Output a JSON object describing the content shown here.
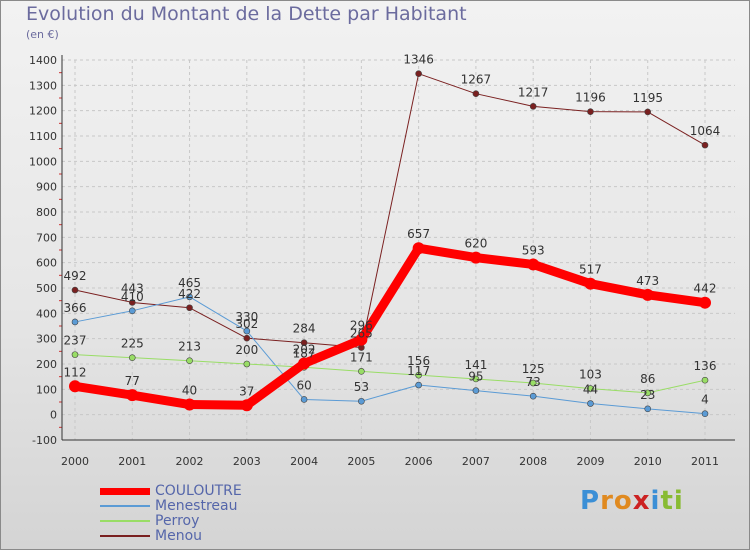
{
  "chart_data": {
    "type": "line",
    "title": "Evolution du Montant de la Dette par Habitant",
    "subtitle": "(en €)",
    "xlabel": "",
    "ylabel": "",
    "x": [
      "2000",
      "2001",
      "2002",
      "2003",
      "2004",
      "2005",
      "2006",
      "2007",
      "2008",
      "2009",
      "2010",
      "2011"
    ],
    "ylim": [
      -100,
      1400
    ],
    "yticks": [
      "-100",
      "0",
      "100",
      "200",
      "300",
      "400",
      "500",
      "600",
      "700",
      "800",
      "900",
      "1000",
      "1100",
      "1200",
      "1300",
      "1400"
    ],
    "grid": true,
    "series": [
      {
        "name": "COULOUTRE",
        "color": "#ff0000",
        "values": [
          112,
          77,
          40,
          37,
          202,
          296,
          657,
          620,
          593,
          517,
          473,
          442
        ]
      },
      {
        "name": "Menestreau",
        "color": "#5b9bd5",
        "values": [
          366,
          410,
          465,
          330,
          60,
          53,
          117,
          95,
          73,
          44,
          23,
          4
        ]
      },
      {
        "name": "Perroy",
        "color": "#99dd66",
        "values": [
          237,
          225,
          213,
          200,
          187,
          171,
          156,
          141,
          125,
          103,
          86,
          136
        ]
      },
      {
        "name": "Menou",
        "color": "#7a2020",
        "values": [
          492,
          443,
          422,
          302,
          284,
          265,
          1346,
          1267,
          1217,
          1196,
          1195,
          1064
        ]
      }
    ]
  },
  "legend": {
    "items": [
      "COULOUTRE",
      "Menestreau",
      "Perroy",
      "Menou"
    ]
  },
  "logo": {
    "letters": [
      "P",
      "r",
      "o",
      "x",
      "i",
      "t",
      "i"
    ],
    "colors": [
      "#3b8fd6",
      "#e08a20",
      "#e08a20",
      "#cc2222",
      "#3b8fd6",
      "#88bb33",
      "#88bb33"
    ]
  }
}
